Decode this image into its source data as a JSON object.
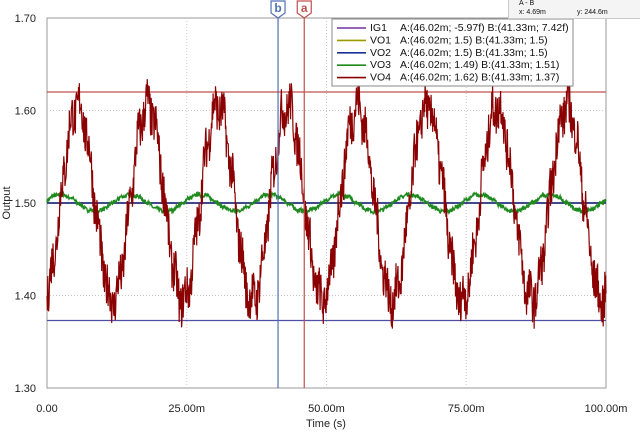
{
  "cursor_panel": {
    "header": "A - B",
    "x_readout": "x:   4.69m",
    "y_readout": "y:  244.6m"
  },
  "cursors": {
    "a": {
      "label": "a",
      "x": 46.02,
      "color": "#c0504d"
    },
    "b": {
      "label": "b",
      "x": 41.33,
      "color": "#4f6fb5"
    }
  },
  "chart_data": {
    "type": "line",
    "xlabel": "Time (s)",
    "ylabel": "Output",
    "xlim": [
      0,
      100
    ],
    "ylim": [
      1.3,
      1.7
    ],
    "x_ticks": [
      0,
      25,
      50,
      75,
      100
    ],
    "x_tick_labels": [
      "0.00",
      "25.00m",
      "50.00m",
      "75.00m",
      "100.00m"
    ],
    "y_ticks": [
      1.3,
      1.4,
      1.5,
      1.6,
      1.7
    ],
    "y_tick_labels": [
      "1.30",
      "1.40",
      "1.50",
      "1.60",
      "1.70"
    ],
    "grid": true,
    "legend_position": "top-right",
    "horizontal_markers": [
      {
        "y": 1.62,
        "color": "#c0504d"
      },
      {
        "y": 1.373,
        "color": "#4f4fa8"
      }
    ],
    "series": [
      {
        "name": "IG1",
        "readout": "A:(46.02m; -5.97f) B:(41.33m; 7.42f)",
        "color": "#7030a0",
        "level": 1.5,
        "amplitude": 0,
        "period": 12.5,
        "phase": 5.5
      },
      {
        "name": "VO1",
        "readout": "A:(46.02m; 1.5) B:(41.33m; 1.5)",
        "color": "#9a9a00",
        "level": 1.5,
        "amplitude": 0,
        "period": 12.5,
        "phase": 5.5
      },
      {
        "name": "VO2",
        "readout": "A:(46.02m; 1.5) B:(41.33m; 1.5)",
        "color": "#1f2f9a",
        "level": 1.5,
        "amplitude": 0,
        "period": 12.5,
        "phase": 5.5
      },
      {
        "name": "VO3",
        "readout": "A:(46.02m; 1.49) B:(41.33m; 1.51)",
        "color": "#1e8a1e",
        "level": 1.5,
        "amplitude": 0.009,
        "period": 12.5,
        "phase": 2.4
      },
      {
        "name": "VO4",
        "readout": "A:(46.02m; 1.62) B:(41.33m; 1.37)",
        "color": "#8b0000",
        "level": 1.5,
        "amplitude": 0.105,
        "period": 12.5,
        "phase": 5.5
      }
    ]
  }
}
